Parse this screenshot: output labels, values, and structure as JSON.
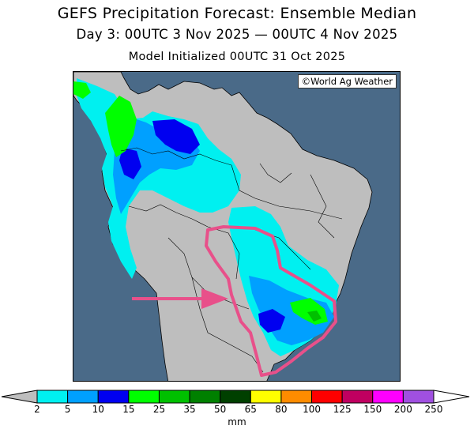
{
  "header": {
    "title": "GEFS Precipitation Forecast: Ensemble Median",
    "subtitle": "Day 3: 00UTC 3 Nov 2025 — 00UTC 4 Nov 2025",
    "init_line": "Model Initialized 00UTC 31 Oct 2025"
  },
  "map": {
    "credit": "©World Ag Weather",
    "colors": {
      "ocean": "#4a6a88",
      "land": "#bebebe",
      "annotation": "#e8508a"
    },
    "annotations": {
      "circled_region": "southern Brazil outline",
      "arrow": "pointing east toward outline"
    }
  },
  "legend": {
    "unit": "mm",
    "ticks": [
      "2",
      "5",
      "10",
      "15",
      "25",
      "35",
      "50",
      "65",
      "80",
      "100",
      "125",
      "150",
      "200",
      "250"
    ],
    "colors": [
      "#00f0f0",
      "#00a0ff",
      "#0000f0",
      "#00ff00",
      "#00c000",
      "#008000",
      "#004000",
      "#ffff00",
      "#ff8c00",
      "#ff0000",
      "#c00060",
      "#ff00ff",
      "#a050e0"
    ],
    "below_min_color": "#bebebe",
    "above_max_color": "#ffffff"
  }
}
